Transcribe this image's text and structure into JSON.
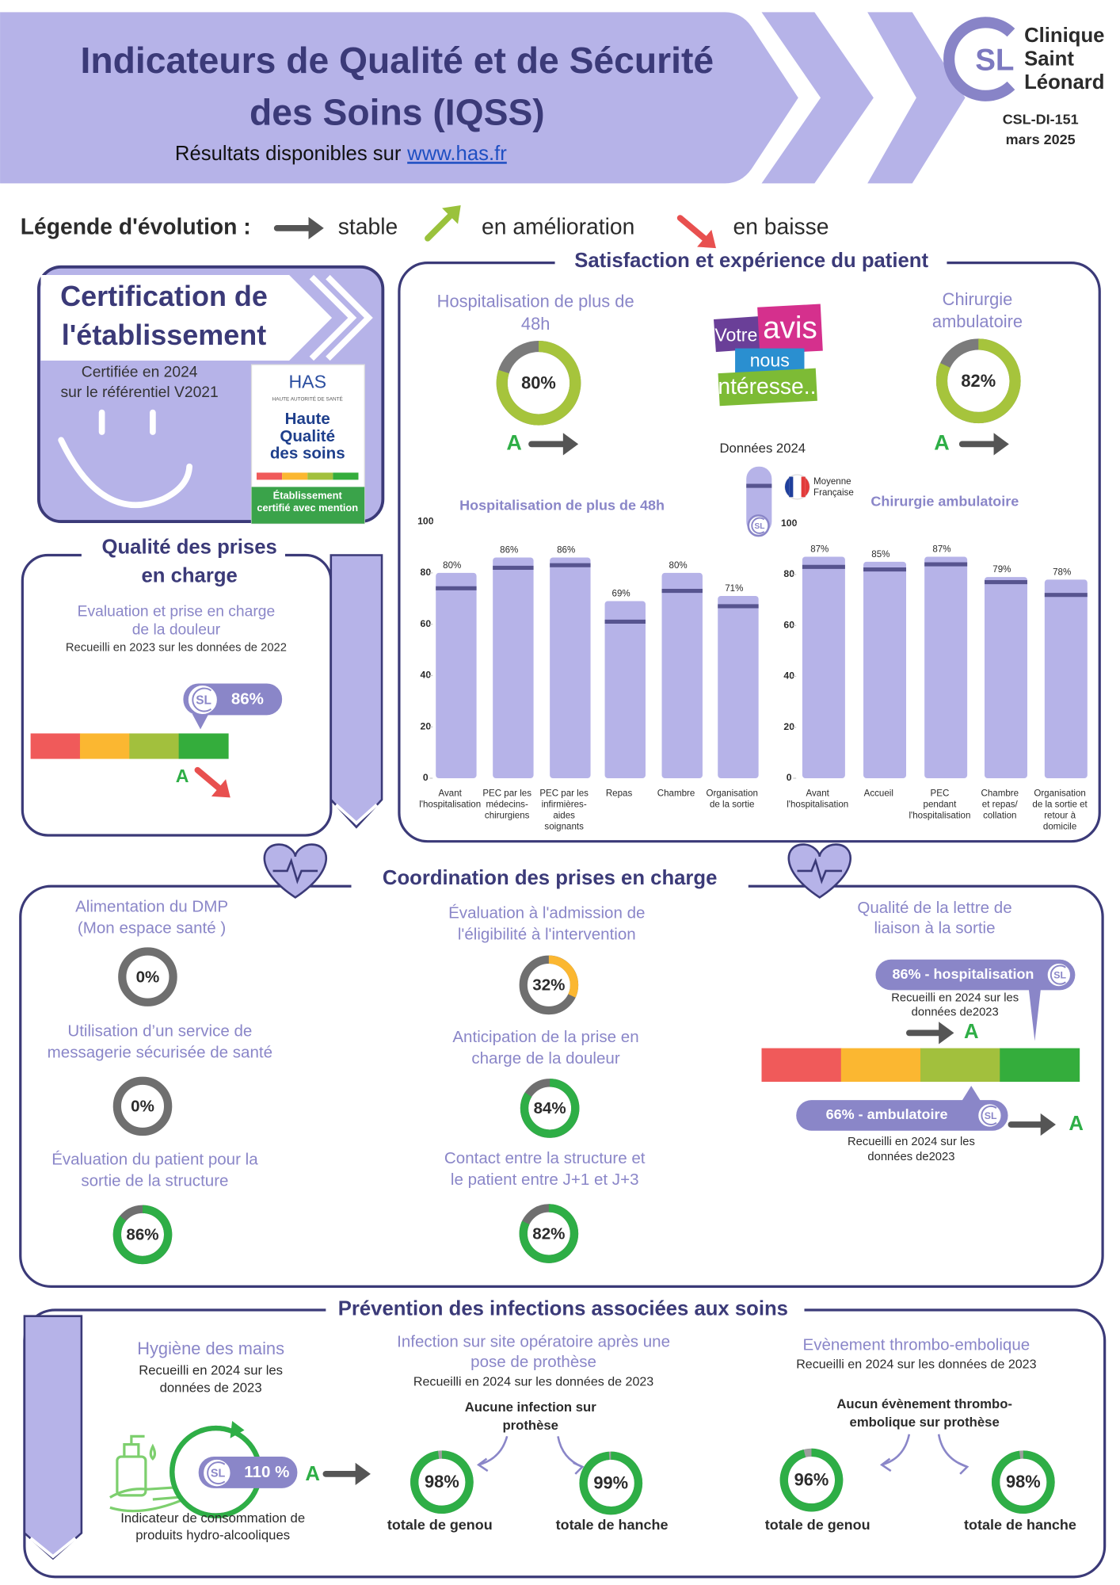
{
  "header": {
    "title": [
      "Indicateurs de Qualité et de Sécurité",
      "des Soins (IQSS)"
    ],
    "subtitle": "Résultats disponibles sur",
    "link": "www.has.fr"
  },
  "logo": {
    "initials": "SL",
    "name": [
      "Clinique",
      "Saint",
      "Léonard"
    ],
    "code": "CSL-DI-151",
    "date": "mars 2025"
  },
  "legend": {
    "label": "Légende d'évolution :",
    "items": [
      {
        "label": "stable",
        "trend": "stable"
      },
      {
        "label": "en amélioration",
        "trend": "up"
      },
      {
        "label": "en baisse",
        "trend": "down"
      }
    ]
  },
  "certification": {
    "title": [
      "Certification de",
      "l'établissement"
    ],
    "text": [
      "Certifiée en 2024",
      "sur le référentiel V2021"
    ],
    "badge": {
      "brand": "HAS",
      "brand_sub": "HAUTE AUTORITÉ DE SANTÉ",
      "name": [
        "Haute",
        "Qualité",
        "des soins"
      ],
      "mention": [
        "Établissement",
        "certifié avec mention"
      ]
    }
  },
  "quality": {
    "title": [
      "Qualité des prises",
      "en charge"
    ],
    "indicator": {
      "title": [
        "Evaluation et prise en charge",
        "de la douleur"
      ],
      "note": "Recueilli en 2023 sur les données de 2022",
      "value": 86,
      "value_label": "86%",
      "grade": "A",
      "trend": "down"
    },
    "scale_colors": [
      "#f05a5a",
      "#fbb731",
      "#a2c03d",
      "#34ad3c"
    ]
  },
  "satisfaction": {
    "title": "Satisfaction et expérience du patient",
    "hospitalisation": {
      "title": [
        "Hospitalisation de plus de",
        "48h"
      ],
      "value": 80,
      "value_label": "80%",
      "grade": "A",
      "trend": "stable"
    },
    "ambulatoire": {
      "title": [
        "Chirurgie",
        "ambulatoire"
      ],
      "value": 82,
      "value_label": "82%",
      "grade": "A",
      "trend": "stable"
    },
    "ring_color": "#a6c43c",
    "ring_track": "#7b7b7b",
    "avis_logo": [
      "Votre",
      "avis",
      "nous",
      "intéresse..."
    ],
    "data_year": "Données 2024",
    "average_legend": [
      "Moyenne",
      "Française"
    ],
    "charts": [
      {
        "type": "bar",
        "title": "Hospitalisation de plus de 48h",
        "categories": [
          [
            "Avant",
            "l'hospitalisation"
          ],
          [
            "PEC par les",
            "médecins-",
            "chirurgiens"
          ],
          [
            "PEC par les",
            "infirmières-",
            "aides",
            "soignants"
          ],
          [
            "Repas"
          ],
          [
            "Chambre"
          ],
          [
            "Organisation",
            "de la sortie"
          ]
        ],
        "values": [
          80,
          86,
          86,
          69,
          80,
          71
        ],
        "value_labels": [
          "80%",
          "86%",
          "86%",
          "69%",
          "80%",
          "71%"
        ],
        "national_average": [
          74,
          82,
          83,
          61,
          73,
          67
        ],
        "ylim": [
          0,
          100
        ],
        "yticks": [
          0,
          20,
          40,
          60,
          80,
          100
        ],
        "color": "#b6b3e8",
        "average_color": "#57548f"
      },
      {
        "type": "bar",
        "title": "Chirurgie ambulatoire",
        "categories": [
          [
            "Avant",
            "l'hospitalisation"
          ],
          [
            "Accueil"
          ],
          [
            "PEC",
            "pendant",
            "l'hospitalisation"
          ],
          [
            "Chambre",
            "et repas/",
            "collation"
          ],
          [
            "Organisation",
            "de la sortie et",
            "retour à",
            "domicile"
          ]
        ],
        "values": [
          87,
          85,
          87,
          79,
          78
        ],
        "value_labels": [
          "87%",
          "85%",
          "87%",
          "79%",
          "78%"
        ],
        "national_average": [
          83,
          82,
          84,
          77,
          72
        ],
        "ylim": [
          0,
          100
        ],
        "yticks": [
          0,
          20,
          40,
          60,
          80,
          100
        ],
        "color": "#b6b3e8",
        "average_color": "#57548f"
      }
    ]
  },
  "coordination": {
    "title": "Coordination des prises en charge",
    "track": "#6f6f6f",
    "items": [
      {
        "title": [
          "Alimentation du DMP",
          "(Mon espace santé )"
        ],
        "value": 0,
        "value_label": "0%",
        "color": "#6f6f6f"
      },
      {
        "title": [
          "Utilisation d’un service de",
          "messagerie sécurisée de santé"
        ],
        "value": 0,
        "value_label": "0%",
        "color": "#6f6f6f"
      },
      {
        "title": [
          "Évaluation du patient pour la",
          "sortie de la structure"
        ],
        "value": 86,
        "value_label": "86%",
        "color": "#2eae46"
      },
      {
        "title": [
          "Évaluation à l'admission de",
          "l'éligibilité à l'intervention"
        ],
        "value": 32,
        "value_label": "32%",
        "color": "#fbb731"
      },
      {
        "title": [
          "Anticipation de la prise en",
          "charge de la douleur"
        ],
        "value": 84,
        "value_label": "84%",
        "color": "#2eae46"
      },
      {
        "title": [
          "Contact entre la structure et",
          "le patient entre J+1 et J+3"
        ],
        "value": 82,
        "value_label": "82%",
        "color": "#2eae46"
      }
    ],
    "letter": {
      "title": [
        "Qualité de la lettre de",
        "liaison à la sortie"
      ],
      "scale_colors": [
        "#f05a5a",
        "#fbb731",
        "#a2c03d",
        "#34ad3c"
      ],
      "hospitalisation": {
        "label": "86% - hospitalisation",
        "value": 86,
        "note": [
          "Recueilli en 2024 sur les",
          "données de2023"
        ],
        "grade": "A",
        "trend": "stable"
      },
      "ambulatoire": {
        "label": "66% - ambulatoire",
        "value": 66,
        "note": [
          "Recueilli en 2024 sur les",
          "données de2023"
        ],
        "grade": "A",
        "trend": "stable"
      }
    }
  },
  "prevention": {
    "title": "Prévention des infections associées aux soins",
    "ring_color": "#2eae46",
    "ring_track": "#9e9e9e",
    "hygiene": {
      "title": "Hygiène des mains",
      "note": [
        "Recueilli en 2024 sur les",
        "données de 2023"
      ],
      "value": 110,
      "value_label": "110 %",
      "grade": "A",
      "trend": "stable",
      "caption": [
        "Indicateur de consommation de",
        "produits hydro-alcooliques"
      ]
    },
    "infection": {
      "title": [
        "Infection sur site opératoire après une",
        "pose de prothèse"
      ],
      "note": "Recueilli en 2024 sur les données de 2023",
      "subtitle": [
        "Aucune infection sur",
        "prothèse"
      ],
      "results": [
        {
          "label": "totale de genou",
          "value": 98,
          "value_label": "98%"
        },
        {
          "label": "totale de hanche",
          "value": 99,
          "value_label": "99%"
        }
      ]
    },
    "thrombo": {
      "title": [
        "Evènement thrombo-embolique"
      ],
      "note": "Recueilli en 2024 sur les données de 2023",
      "subtitle": [
        "Aucun évènement thrombo-",
        "embolique sur prothèse"
      ],
      "results": [
        {
          "label": "totale de genou",
          "value": 96,
          "value_label": "96%"
        },
        {
          "label": "totale de hanche",
          "value": 98,
          "value_label": "98%"
        }
      ]
    }
  }
}
